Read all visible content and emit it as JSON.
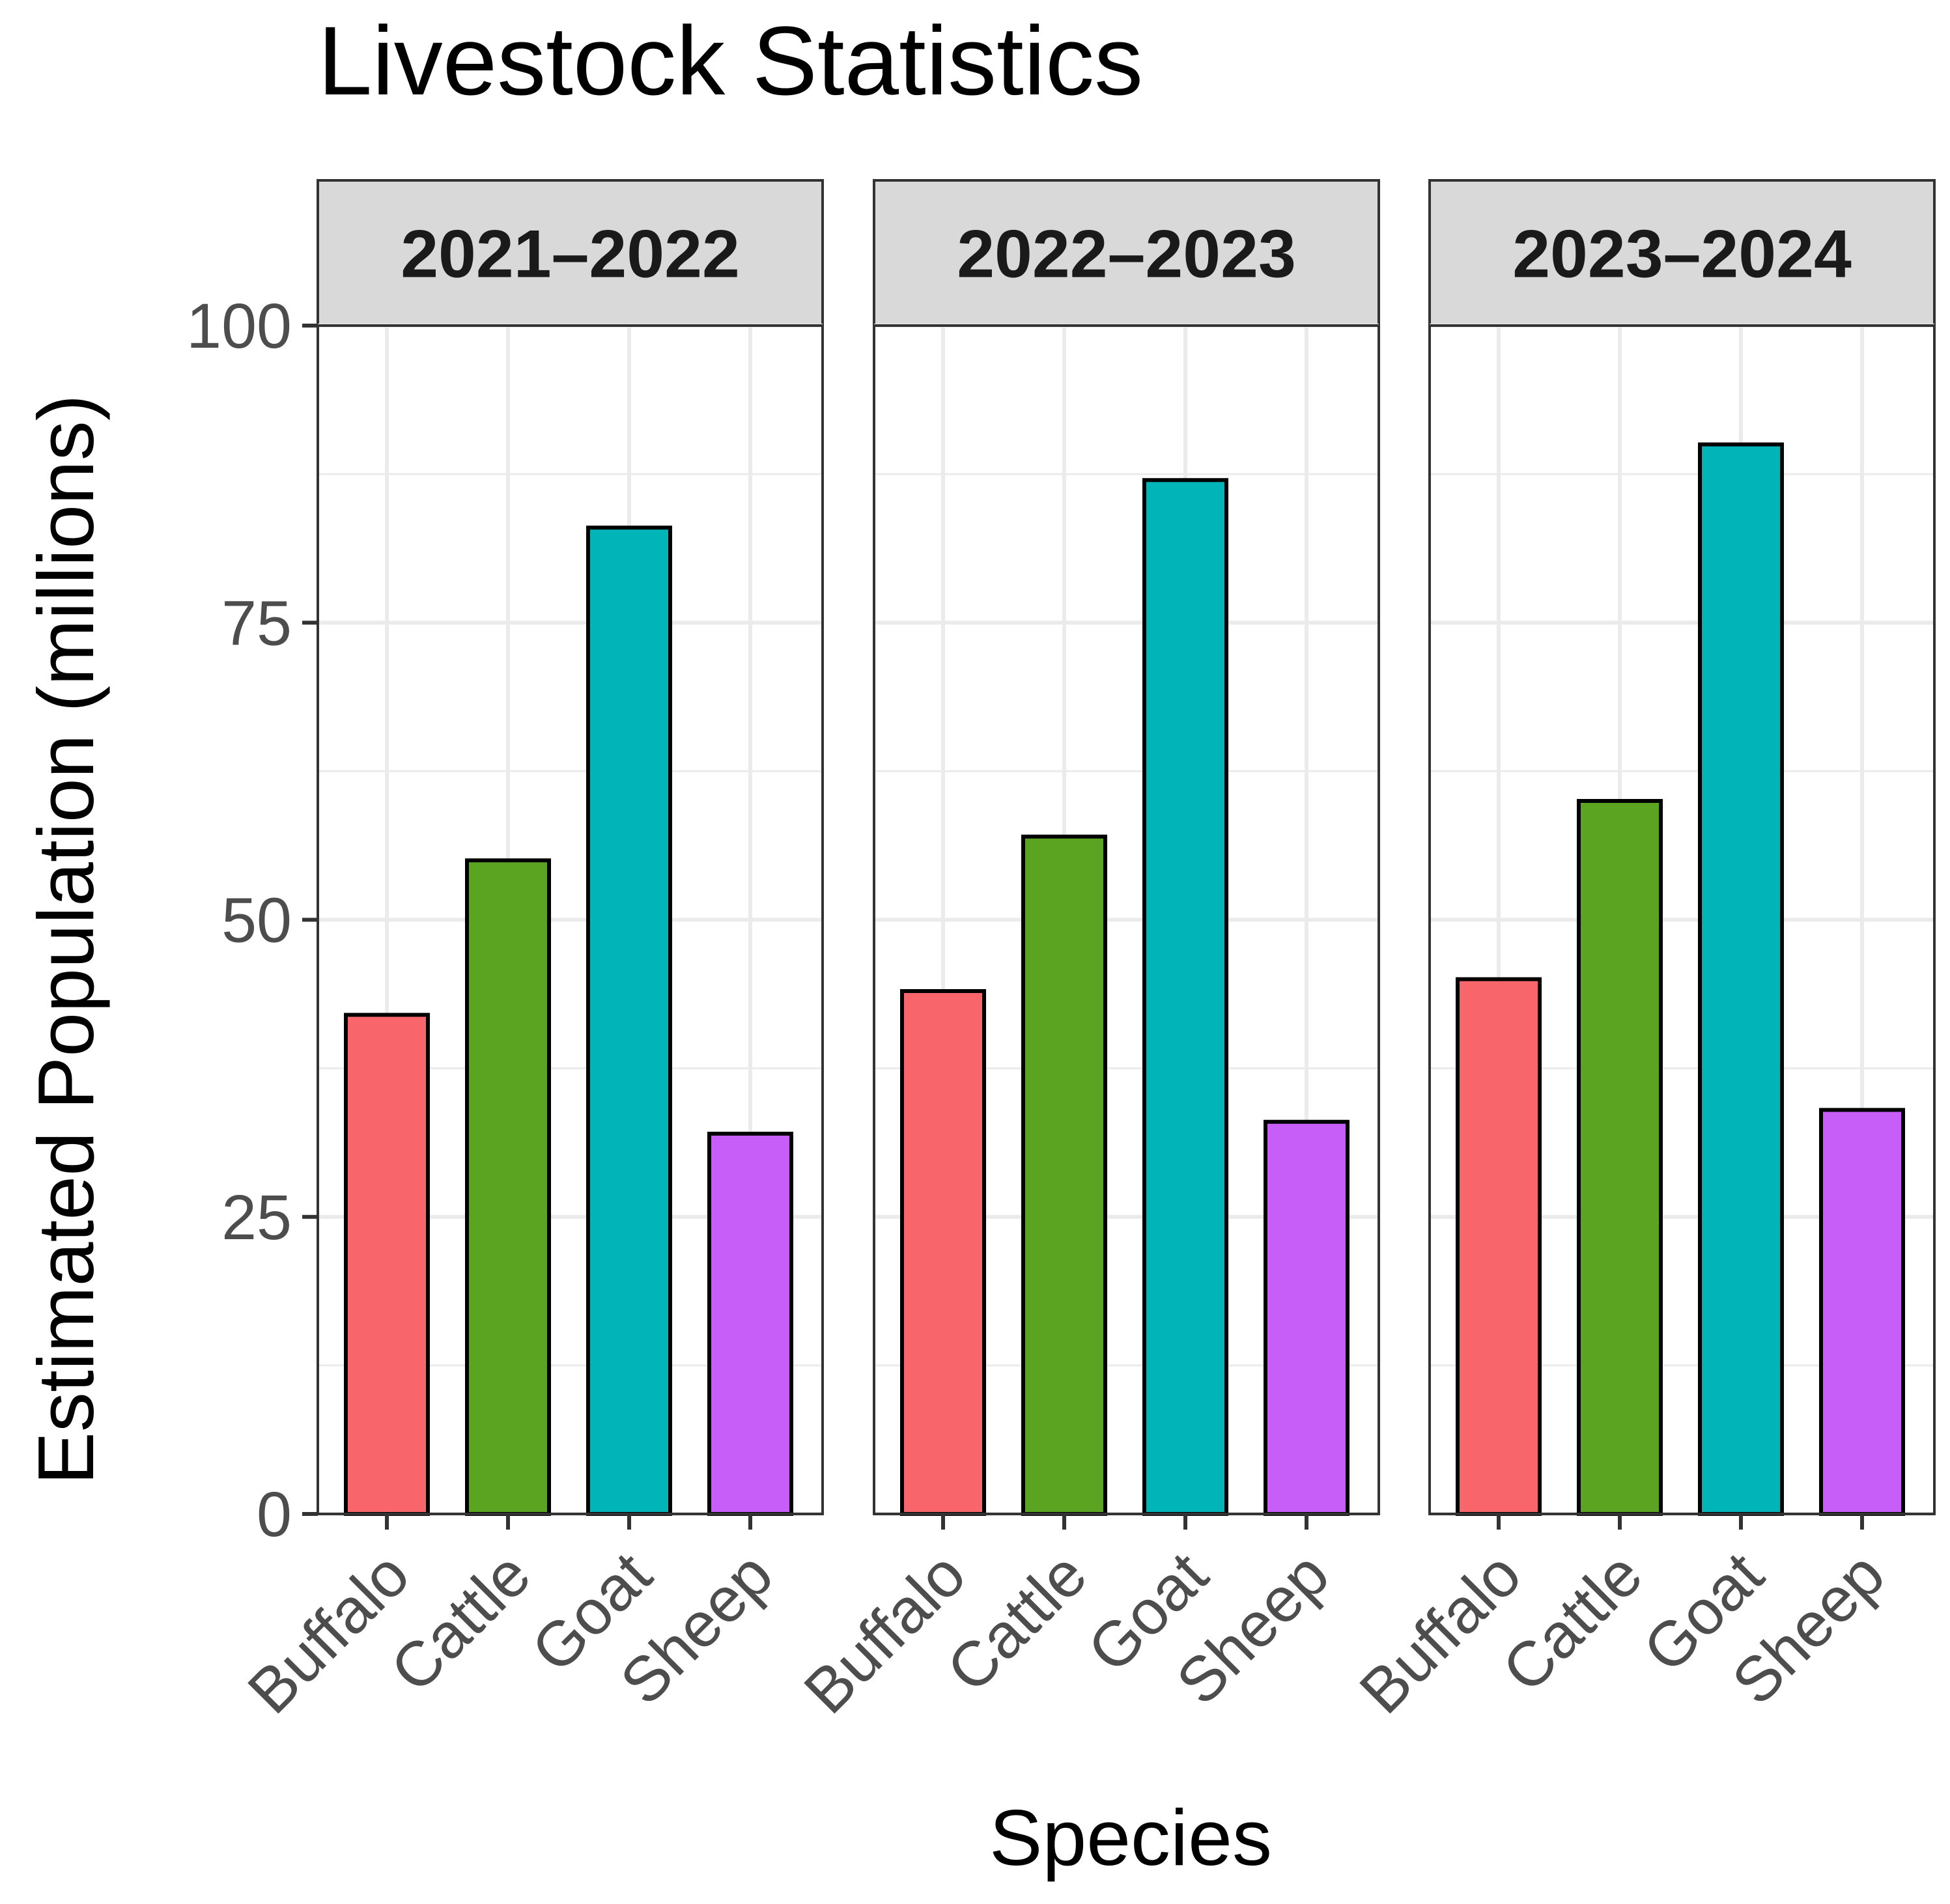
{
  "chart_data": {
    "type": "bar",
    "title": "Livestock Statistics",
    "xlabel": "Species",
    "ylabel": "Estimated Population (millions)",
    "ylim": [
      0,
      100
    ],
    "yticks": [
      0,
      25,
      50,
      75,
      100
    ],
    "grid": true,
    "categories": [
      "Buffalo",
      "Cattle",
      "Goat",
      "Sheep"
    ],
    "colors": {
      "Buffalo": "#F8666C",
      "Cattle": "#5BA422",
      "Goat": "#00B4B8",
      "Sheep": "#C75EF7"
    },
    "facets": [
      {
        "label": "2021–2022",
        "values": [
          42,
          55,
          83,
          32
        ]
      },
      {
        "label": "2022–2023",
        "values": [
          44,
          57,
          87,
          33
        ]
      },
      {
        "label": "2023–2024",
        "values": [
          45,
          60,
          90,
          34
        ]
      }
    ]
  }
}
